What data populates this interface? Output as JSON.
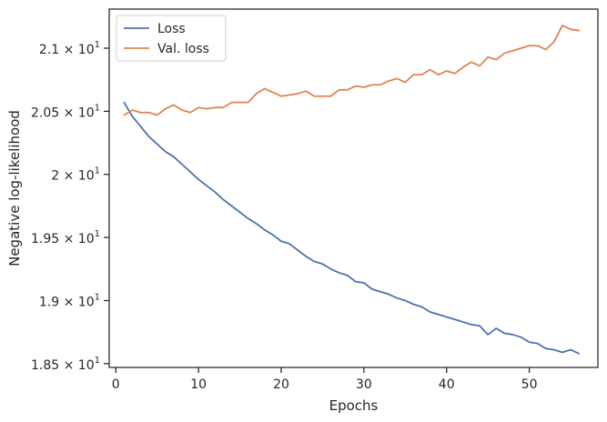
{
  "chart_data": {
    "type": "line",
    "xlabel": "Epochs",
    "ylabel": "Negative log-likelihood",
    "xlim": [
      -0.8,
      58.3
    ],
    "ylim": [
      18.47,
      21.31
    ],
    "x_ticks": [
      {
        "value": 0,
        "label": "0"
      },
      {
        "value": 10,
        "label": "10"
      },
      {
        "value": 20,
        "label": "20"
      },
      {
        "value": 30,
        "label": "30"
      },
      {
        "value": 40,
        "label": "40"
      },
      {
        "value": 50,
        "label": "50"
      }
    ],
    "y_ticks": [
      {
        "value": 18.5,
        "mantissa": "1.85",
        "exp": "1"
      },
      {
        "value": 19.0,
        "mantissa": "1.9",
        "exp": "1"
      },
      {
        "value": 19.5,
        "mantissa": "1.95",
        "exp": "1"
      },
      {
        "value": 20.0,
        "mantissa": "2",
        "exp": "1"
      },
      {
        "value": 20.5,
        "mantissa": "2.05",
        "exp": "1"
      },
      {
        "value": 21.0,
        "mantissa": "2.1",
        "exp": "1"
      }
    ],
    "tick_times": "×",
    "tick_base": "10",
    "legend_position": "top-left",
    "x": [
      1,
      2,
      3,
      4,
      5,
      6,
      7,
      8,
      9,
      10,
      11,
      12,
      13,
      14,
      15,
      16,
      17,
      18,
      19,
      20,
      21,
      22,
      23,
      24,
      25,
      26,
      27,
      28,
      29,
      30,
      31,
      32,
      33,
      34,
      35,
      36,
      37,
      38,
      39,
      40,
      41,
      42,
      43,
      44,
      45,
      46,
      47,
      48,
      49,
      50,
      51,
      52,
      53,
      54,
      55,
      56
    ],
    "series": [
      {
        "name": "Loss",
        "color": "#4c72b0",
        "values": [
          20.57,
          20.46,
          20.38,
          20.3,
          20.24,
          20.18,
          20.14,
          20.08,
          20.02,
          19.96,
          19.91,
          19.86,
          19.8,
          19.75,
          19.7,
          19.65,
          19.61,
          19.56,
          19.52,
          19.47,
          19.45,
          19.4,
          19.35,
          19.31,
          19.29,
          19.25,
          19.22,
          19.2,
          19.15,
          19.14,
          19.09,
          19.07,
          19.05,
          19.02,
          19.0,
          18.97,
          18.95,
          18.91,
          18.89,
          18.87,
          18.85,
          18.83,
          18.81,
          18.8,
          18.73,
          18.78,
          18.74,
          18.73,
          18.71,
          18.67,
          18.66,
          18.62,
          18.61,
          18.59,
          18.61,
          18.58
        ]
      },
      {
        "name": "Val. loss",
        "color": "#dd8452",
        "values": [
          20.47,
          20.51,
          20.49,
          20.49,
          20.47,
          20.52,
          20.55,
          20.51,
          20.49,
          20.53,
          20.52,
          20.53,
          20.53,
          20.57,
          20.57,
          20.57,
          20.64,
          20.68,
          20.65,
          20.62,
          20.63,
          20.64,
          20.66,
          20.62,
          20.62,
          20.62,
          20.67,
          20.67,
          20.7,
          20.69,
          20.71,
          20.71,
          20.74,
          20.76,
          20.73,
          20.79,
          20.79,
          20.83,
          20.79,
          20.82,
          20.8,
          20.85,
          20.89,
          20.86,
          20.93,
          20.91,
          20.96,
          20.98,
          21.0,
          21.02,
          21.02,
          20.99,
          21.05,
          21.18,
          21.15,
          21.14
        ]
      }
    ]
  }
}
